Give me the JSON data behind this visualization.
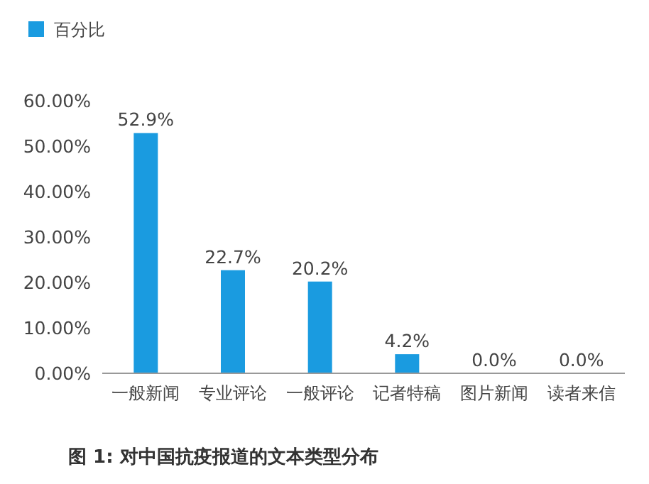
{
  "chart_data": {
    "type": "bar",
    "title": "图 1: 对中国抗疫报道的文本类型分布",
    "categories": [
      "一般新闻",
      "专业评论",
      "一般评论",
      "记者特稿",
      "图片新闻",
      "读者来信"
    ],
    "series": [
      {
        "name": "百分比",
        "color": "#1a9be0",
        "values": [
          52.9,
          22.7,
          20.2,
          4.2,
          0.0,
          0.0
        ],
        "value_labels": [
          "52.9%",
          "22.7%",
          "20.2%",
          "4.2%",
          "0.0%",
          "0.0%"
        ]
      }
    ],
    "ylim": [
      0,
      60
    ],
    "yticks": [
      {
        "value": 0,
        "label": "0.00%"
      },
      {
        "value": 10,
        "label": "10.00%"
      },
      {
        "value": 20,
        "label": "20.00%"
      },
      {
        "value": 30,
        "label": "30.00%"
      },
      {
        "value": 40,
        "label": "40.00%"
      },
      {
        "value": 50,
        "label": "50.00%"
      },
      {
        "value": 60,
        "label": "60.00%"
      }
    ],
    "legend": "top left",
    "grid": false
  }
}
